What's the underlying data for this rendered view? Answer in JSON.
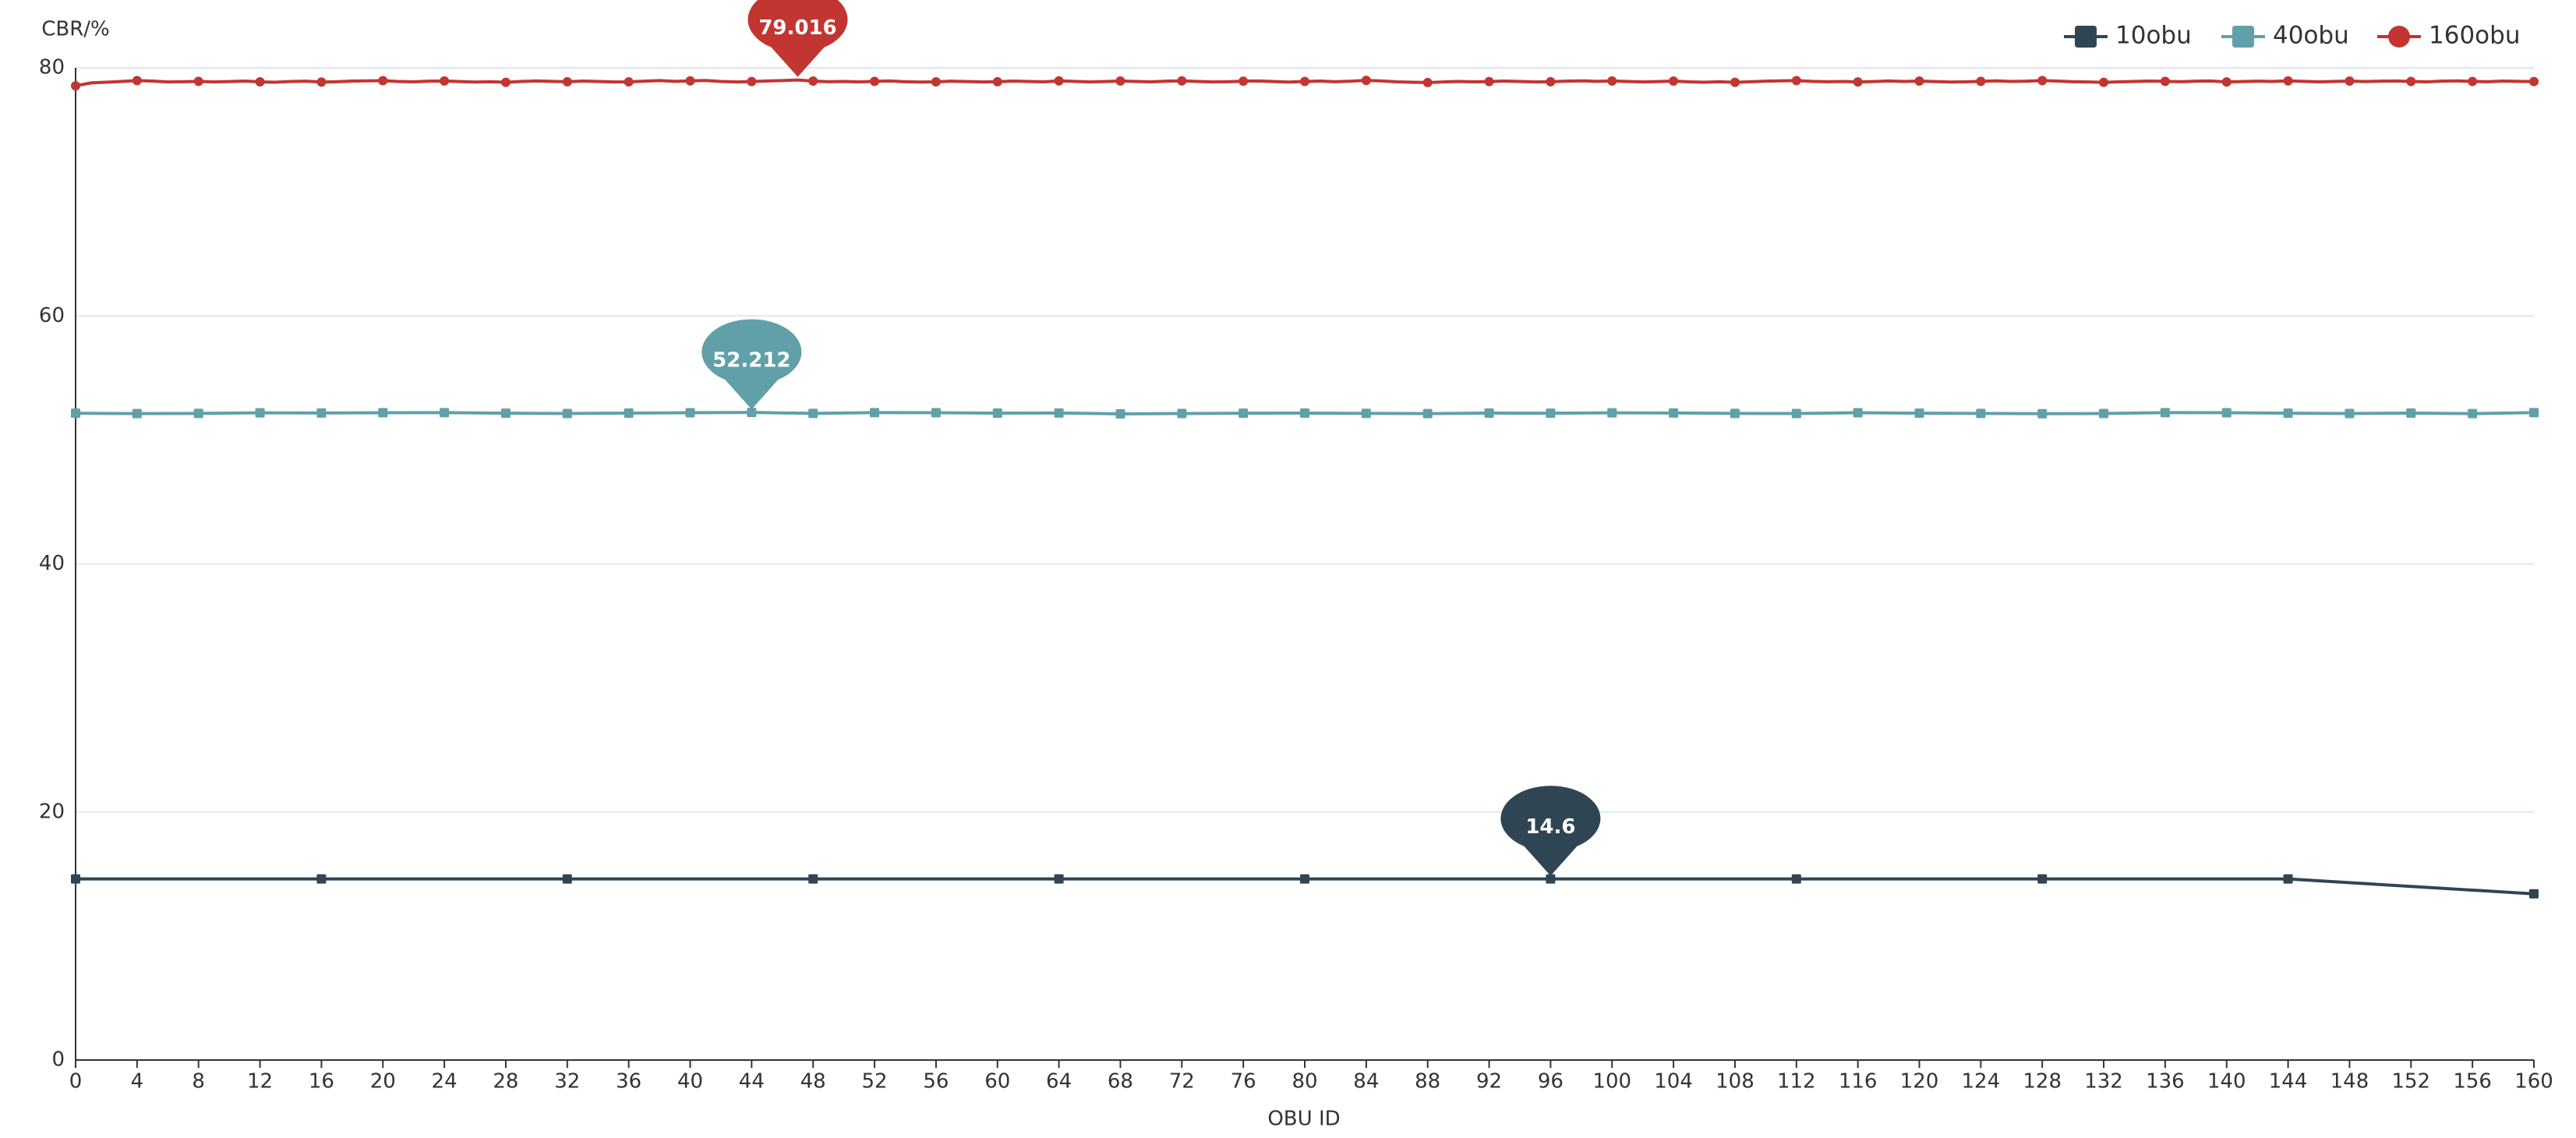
{
  "chart_data": {
    "type": "line",
    "x_label": "OBU ID",
    "y_label": "CBR/%",
    "xlim": [
      0,
      160
    ],
    "xticks": [
      0,
      4,
      8,
      12,
      16,
      20,
      24,
      28,
      32,
      36,
      40,
      44,
      48,
      52,
      56,
      60,
      64,
      68,
      72,
      76,
      80,
      84,
      88,
      92,
      96,
      100,
      104,
      108,
      112,
      116,
      120,
      124,
      128,
      132,
      136,
      140,
      144,
      148,
      152,
      156,
      160
    ],
    "ylim": [
      0,
      80
    ],
    "yticks": [
      0,
      20,
      40,
      60,
      80
    ],
    "grid": true,
    "legend": "top-right",
    "series": [
      {
        "name": "10obu",
        "color": "#2f4554",
        "symbol": "square",
        "markpoint_at": 96,
        "x": [
          0,
          16,
          32,
          48,
          64,
          80,
          96,
          112,
          128,
          144,
          160
        ],
        "values": [
          14.6,
          14.6,
          14.6,
          14.6,
          14.6,
          14.6,
          14.6,
          14.6,
          14.6,
          14.6,
          13.4
        ]
      },
      {
        "name": "40obu",
        "color": "#61a0a8",
        "symbol": "square",
        "markpoint_at": 44,
        "x": [
          0,
          4,
          8,
          12,
          16,
          20,
          24,
          28,
          32,
          36,
          40,
          44,
          48,
          52,
          56,
          60,
          64,
          68,
          72,
          76,
          80,
          84,
          88,
          92,
          96,
          100,
          104,
          108,
          112,
          116,
          120,
          124,
          128,
          132,
          136,
          140,
          144,
          148,
          152,
          156,
          160
        ],
        "values": [
          52.15,
          52.12,
          52.14,
          52.18,
          52.17,
          52.19,
          52.2,
          52.15,
          52.13,
          52.16,
          52.19,
          52.212,
          52.14,
          52.2,
          52.19,
          52.16,
          52.17,
          52.1,
          52.13,
          52.15,
          52.16,
          52.14,
          52.12,
          52.16,
          52.15,
          52.18,
          52.17,
          52.14,
          52.13,
          52.19,
          52.15,
          52.14,
          52.11,
          52.13,
          52.2,
          52.19,
          52.15,
          52.13,
          52.16,
          52.12,
          52.2
        ]
      },
      {
        "name": "160obu",
        "color": "#c23531",
        "symbol": "circle",
        "markpoint_at": 47,
        "x": [
          0,
          1,
          2,
          3,
          4,
          5,
          6,
          7,
          8,
          9,
          10,
          11,
          12,
          13,
          14,
          15,
          16,
          17,
          18,
          19,
          20,
          21,
          22,
          23,
          24,
          25,
          26,
          27,
          28,
          29,
          30,
          31,
          32,
          33,
          34,
          35,
          36,
          37,
          38,
          39,
          40,
          41,
          42,
          43,
          44,
          45,
          46,
          47,
          48,
          49,
          50,
          51,
          52,
          53,
          54,
          55,
          56,
          57,
          58,
          59,
          60,
          61,
          62,
          63,
          64,
          65,
          66,
          67,
          68,
          69,
          70,
          71,
          72,
          73,
          74,
          75,
          76,
          77,
          78,
          79,
          80,
          81,
          82,
          83,
          84,
          85,
          86,
          87,
          88,
          89,
          90,
          91,
          92,
          93,
          94,
          95,
          96,
          97,
          98,
          99,
          100,
          101,
          102,
          103,
          104,
          105,
          106,
          107,
          108,
          109,
          110,
          111,
          112,
          113,
          114,
          115,
          116,
          117,
          118,
          119,
          120,
          121,
          122,
          123,
          124,
          125,
          126,
          127,
          128,
          129,
          130,
          131,
          132,
          133,
          134,
          135,
          136,
          137,
          138,
          139,
          140,
          141,
          142,
          143,
          144,
          145,
          146,
          147,
          148,
          149,
          150,
          151,
          152,
          153,
          154,
          155,
          156,
          157,
          158,
          159,
          160
        ],
        "values": [
          78.55,
          78.78,
          78.84,
          78.9,
          78.97,
          78.93,
          78.86,
          78.88,
          78.91,
          78.86,
          78.89,
          78.93,
          78.87,
          78.84,
          78.9,
          78.92,
          78.85,
          78.88,
          78.93,
          78.95,
          78.96,
          78.9,
          78.87,
          78.92,
          78.94,
          78.89,
          78.85,
          78.88,
          78.83,
          78.9,
          78.94,
          78.91,
          78.88,
          78.93,
          78.9,
          78.86,
          78.87,
          78.92,
          78.97,
          78.91,
          78.95,
          78.98,
          78.9,
          78.86,
          78.89,
          78.94,
          78.97,
          79.016,
          78.93,
          78.88,
          78.9,
          78.86,
          78.91,
          78.94,
          78.88,
          78.85,
          78.87,
          78.92,
          78.89,
          78.86,
          78.88,
          78.93,
          78.9,
          78.87,
          78.95,
          78.91,
          78.86,
          78.89,
          78.94,
          78.9,
          78.87,
          78.92,
          78.95,
          78.9,
          78.86,
          78.88,
          78.92,
          78.94,
          78.89,
          78.85,
          78.9,
          78.93,
          78.88,
          78.92,
          78.99,
          78.94,
          78.87,
          78.84,
          78.81,
          78.86,
          78.9,
          78.87,
          78.89,
          78.93,
          78.9,
          78.86,
          78.88,
          78.92,
          78.95,
          78.91,
          78.94,
          78.9,
          78.86,
          78.89,
          78.93,
          78.87,
          78.84,
          78.88,
          78.83,
          78.88,
          78.92,
          78.95,
          78.97,
          78.91,
          78.88,
          78.9,
          78.86,
          78.89,
          78.94,
          78.9,
          78.93,
          78.89,
          78.85,
          78.87,
          78.91,
          78.95,
          78.9,
          78.92,
          78.97,
          78.93,
          78.88,
          78.86,
          78.83,
          78.87,
          78.9,
          78.93,
          78.91,
          78.88,
          78.92,
          78.94,
          78.86,
          78.89,
          78.92,
          78.9,
          78.95,
          78.91,
          78.87,
          78.9,
          78.93,
          78.89,
          78.92,
          78.94,
          78.9,
          78.87,
          78.92,
          78.95,
          78.9,
          78.88,
          78.93,
          78.91,
          78.89
        ]
      }
    ]
  }
}
